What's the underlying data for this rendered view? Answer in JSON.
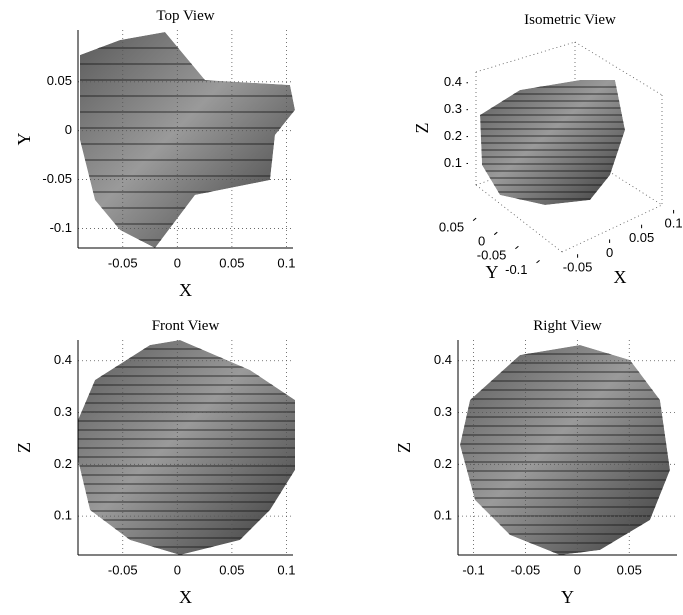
{
  "chart_data": [
    {
      "type": "surface",
      "title": "Top View",
      "xlabel": "X",
      "ylabel": "Y",
      "xlim": [
        -0.091,
        0.106
      ],
      "ylim": [
        -0.12,
        0.103
      ],
      "xticks": [
        -0.05,
        0,
        0.05,
        0.1
      ],
      "yticks": [
        -0.1,
        -0.05,
        0,
        0.05
      ],
      "grid": true
    },
    {
      "type": "surface3d",
      "title": "Isometric View",
      "xlabel": "X",
      "ylabel": "Y",
      "zlabel": "Z",
      "xlim": [
        -0.09,
        0.11
      ],
      "ylim": [
        -0.12,
        0.1
      ],
      "zlim": [
        0.02,
        0.44
      ],
      "xticks": [
        -0.05,
        0,
        0.05,
        0.1
      ],
      "yticks": [
        -0.1,
        -0.05,
        0,
        0.05
      ],
      "zticks": [
        0.1,
        0.2,
        0.3,
        0.4
      ],
      "grid": true
    },
    {
      "type": "surface",
      "title": "Front View",
      "xlabel": "X",
      "ylabel": "Z",
      "xlim": [
        -0.091,
        0.106
      ],
      "ylim": [
        0.025,
        0.44
      ],
      "xticks": [
        -0.05,
        0,
        0.05,
        0.1
      ],
      "yticks": [
        0.1,
        0.2,
        0.3,
        0.4
      ],
      "grid": true
    },
    {
      "type": "surface",
      "title": "Right View",
      "xlabel": "Y",
      "ylabel": "Z",
      "xlim": [
        -0.115,
        0.096
      ],
      "ylim": [
        0.025,
        0.44
      ],
      "xticks": [
        -0.1,
        -0.05,
        0,
        0.05
      ],
      "yticks": [
        0.1,
        0.2,
        0.3,
        0.4
      ],
      "grid": true
    }
  ]
}
